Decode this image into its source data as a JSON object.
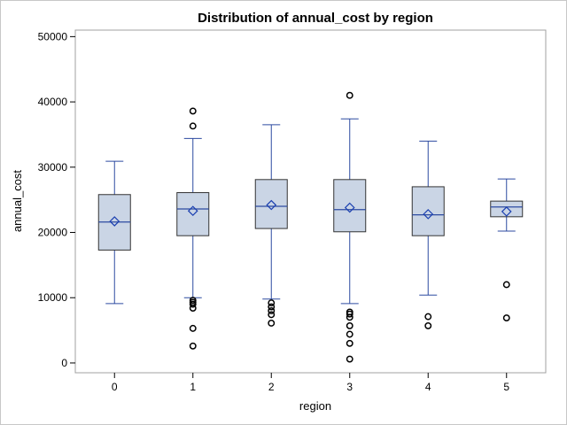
{
  "chart_data": {
    "type": "box",
    "title": "Distribution of annual_cost by region",
    "xlabel": "region",
    "ylabel": "annual_cost",
    "ylim": [
      -1500,
      51000
    ],
    "yticks": [
      0,
      10000,
      20000,
      30000,
      40000,
      50000
    ],
    "ytick_labels": [
      "0",
      "10000",
      "20000",
      "30000",
      "40000",
      "50000"
    ],
    "grid": false,
    "legend": "none",
    "colors": {
      "box_fill": "#cad5e5",
      "box_edge": "#2c4aa0",
      "median": "#2c4aa0",
      "mean_marker": "#1a3fb0",
      "outlier": "#000000"
    },
    "categories": [
      "0",
      "1",
      "2",
      "3",
      "4",
      "5"
    ],
    "boxes": [
      {
        "category": "0",
        "whisker_low": 9100,
        "q1": 17300,
        "median": 21600,
        "q3": 25800,
        "whisker_high": 30900,
        "mean": 21700,
        "outliers": []
      },
      {
        "category": "1",
        "whisker_low": 10000,
        "q1": 19500,
        "median": 23600,
        "q3": 26100,
        "whisker_high": 34400,
        "mean": 23300,
        "outliers": [
          38600,
          36300,
          9600,
          9300,
          9000,
          8400,
          5300,
          2600
        ]
      },
      {
        "category": "2",
        "whisker_low": 9800,
        "q1": 20600,
        "median": 24000,
        "q3": 28100,
        "whisker_high": 36500,
        "mean": 24200,
        "outliers": [
          9200,
          8600,
          8000,
          7400,
          6100
        ]
      },
      {
        "category": "3",
        "whisker_low": 9100,
        "q1": 20100,
        "median": 23500,
        "q3": 28100,
        "whisker_high": 37400,
        "mean": 23800,
        "outliers": [
          41000,
          7800,
          7500,
          7000,
          5700,
          4400,
          3000,
          600
        ]
      },
      {
        "category": "4",
        "whisker_low": 10400,
        "q1": 19500,
        "median": 22700,
        "q3": 27000,
        "whisker_high": 34000,
        "mean": 22800,
        "outliers": [
          7100,
          5700
        ]
      },
      {
        "category": "5",
        "whisker_low": 20200,
        "q1": 22400,
        "median": 23900,
        "q3": 24800,
        "whisker_high": 28200,
        "mean": 23200,
        "outliers": [
          12000,
          6900
        ]
      }
    ]
  }
}
